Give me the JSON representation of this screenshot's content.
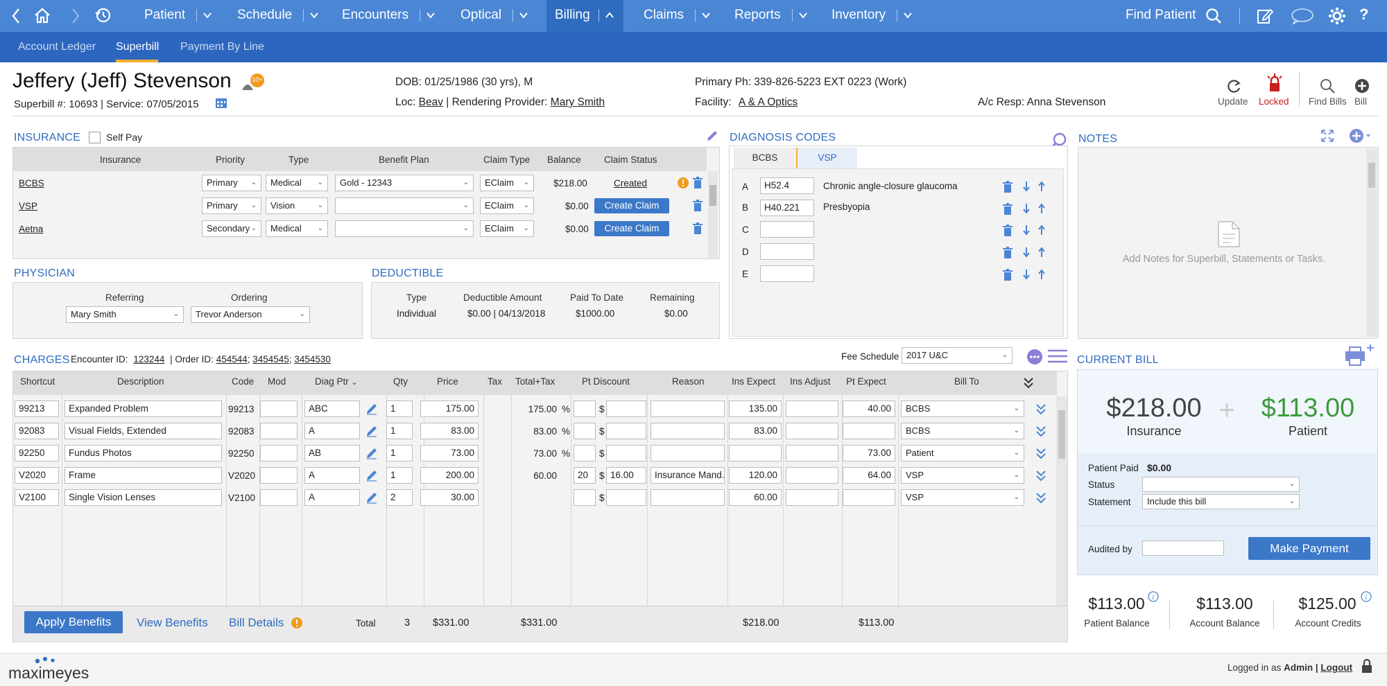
{
  "topnav": {
    "items": [
      {
        "label": "Patient"
      },
      {
        "label": "Schedule"
      },
      {
        "label": "Encounters"
      },
      {
        "label": "Optical"
      },
      {
        "label": "Billing"
      },
      {
        "label": "Claims"
      },
      {
        "label": "Reports"
      },
      {
        "label": "Inventory"
      }
    ],
    "find_patient": "Find Patient",
    "active": "Billing"
  },
  "subnav": {
    "tabs": [
      {
        "label": "Account Ledger"
      },
      {
        "label": "Superbill"
      },
      {
        "label": "Payment By Line"
      }
    ],
    "selected": "Superbill"
  },
  "patient": {
    "name": "Jeffery (Jeff) Stevenson",
    "badge": "10+",
    "superbill_line": "Superbill  #: 10693  |  Service: 07/05/2015",
    "dob": "DOB: 01/25/1986 (30 yrs), M",
    "loc_label": "Loc:",
    "loc": "Beav",
    "rendering_label": "| Rendering Provider:",
    "rendering_provider": "Mary Smith",
    "primary_phone": "Primary Ph: 339-826-5223  EXT 0223 (Work)",
    "facility_label": "Facility:",
    "facility": "A & A Optics",
    "ac_resp": "A/c Resp:  Anna Stevenson"
  },
  "actions": {
    "update": "Update",
    "locked": "Locked",
    "find_bills": "Find Bills",
    "bill": "Bill"
  },
  "insurance": {
    "title": "INSURANCE",
    "self_pay": "Self Pay",
    "headers": [
      "Insurance",
      "Priority",
      "Type",
      "Benefit Plan",
      "Claim Type",
      "Balance",
      "Claim Status"
    ],
    "rows": [
      {
        "insurance": "BCBS",
        "priority": "Primary",
        "type": "Medical",
        "plan": "Gold - 12343",
        "claim_type": "EClaim",
        "balance": "$218.00",
        "status": "Created"
      },
      {
        "insurance": "VSP",
        "priority": "Primary",
        "type": "Vision",
        "plan": "",
        "claim_type": "EClaim",
        "balance": "$0.00",
        "status": "Create Claim"
      },
      {
        "insurance": "Aetna",
        "priority": "Secondary",
        "type": "Medical",
        "plan": "",
        "claim_type": "EClaim",
        "balance": "$0.00",
        "status": "Create Claim"
      }
    ]
  },
  "physician": {
    "title": "PHYSICIAN",
    "referring_label": "Referring",
    "ordering_label": "Ordering",
    "referring": "Mary Smith",
    "ordering": "Trevor Anderson"
  },
  "deductible": {
    "title": "DEDUCTIBLE",
    "headers": [
      "Type",
      "Deductible Amount",
      "Paid To Date",
      "Remaining"
    ],
    "row": [
      "Individual",
      "$0.00 | 04/13/2018",
      "$1000.00",
      "$0.00"
    ]
  },
  "diagnosis": {
    "title": "DIAGNOSIS CODES",
    "tabs": [
      "BCBS",
      "VSP"
    ],
    "rows": [
      {
        "letter": "A",
        "code": "H52.4",
        "desc": "Chronic angle-closure glaucoma"
      },
      {
        "letter": "B",
        "code": "H40.221",
        "desc": "Presbyopia"
      },
      {
        "letter": "C",
        "code": "",
        "desc": ""
      },
      {
        "letter": "D",
        "code": "",
        "desc": ""
      },
      {
        "letter": "E",
        "code": "",
        "desc": ""
      }
    ]
  },
  "notes": {
    "title": "NOTES",
    "placeholder": "Add Notes for Superbill, Statements or Tasks."
  },
  "charges": {
    "title": "CHARGES",
    "encounter_label": "Encounter ID:",
    "encounter_id": "123244",
    "order_label": "|  Order ID:",
    "order_ids": [
      "454544",
      "3454545",
      "3454530"
    ],
    "fee_schedule_label": "Fee Schedule",
    "fee_schedule": "2017 U&C",
    "headers": [
      "Shortcut",
      "Description",
      "Code",
      "Mod",
      "Diag Ptr",
      "Qty",
      "Price",
      "Tax",
      "Total+Tax",
      "Pt Discount",
      "Reason",
      "Ins Expect",
      "Ins Adjust",
      "Pt Expect",
      "Bill To"
    ],
    "rows": [
      {
        "shortcut": "99213",
        "desc": "Expanded Problem",
        "code": "99213",
        "mod": "",
        "diag": "ABC",
        "qty": "1",
        "price": "175.00",
        "total": "175.00",
        "pct": "%",
        "disc_pct": "",
        "disc_amt": "",
        "reason": "",
        "ins_expect": "135.00",
        "ins_adjust": "",
        "pt_expect": "40.00",
        "bill_to": "BCBS"
      },
      {
        "shortcut": "92083",
        "desc": "Visual Fields, Extended",
        "code": "92083",
        "mod": "",
        "diag": "A",
        "qty": "1",
        "price": "83.00",
        "total": "83.00",
        "pct": "%",
        "disc_pct": "",
        "disc_amt": "",
        "reason": "",
        "ins_expect": "83.00",
        "ins_adjust": "",
        "pt_expect": "",
        "bill_to": "BCBS"
      },
      {
        "shortcut": "92250",
        "desc": "Fundus Photos",
        "code": "92250",
        "mod": "",
        "diag": "AB",
        "qty": "1",
        "price": "73.00",
        "total": "73.00",
        "pct": "%",
        "disc_pct": "",
        "disc_amt": "",
        "reason": "",
        "ins_expect": "",
        "ins_adjust": "",
        "pt_expect": "73.00",
        "bill_to": "Patient"
      },
      {
        "shortcut": "V2020",
        "desc": "Frame",
        "code": "V2020",
        "mod": "",
        "diag": "A",
        "qty": "1",
        "price": "200.00",
        "total": "60.00",
        "pct": "",
        "disc_pct": "20",
        "disc_amt": "16.00",
        "reason": "Insurance Mand...",
        "ins_expect": "120.00",
        "ins_adjust": "",
        "pt_expect": "64.00",
        "bill_to": "VSP"
      },
      {
        "shortcut": "V2100",
        "desc": "Single Vision Lenses",
        "code": "V2100",
        "mod": "",
        "diag": "A",
        "qty": "2",
        "price": "30.00",
        "total": "",
        "pct": "",
        "disc_pct": "",
        "disc_amt": "",
        "reason": "",
        "ins_expect": "60.00",
        "ins_adjust": "",
        "pt_expect": "",
        "bill_to": "VSP"
      }
    ],
    "dollar": "$",
    "footer": {
      "apply_benefits": "Apply Benefits",
      "view_benefits": "View Benefits",
      "bill_details": "Bill Details",
      "total_label": "Total",
      "qty_total": "3",
      "price_total": "$331.00",
      "total_tax": "$331.00",
      "ins_expect_total": "$218.00",
      "pt_expect_total": "$113.00"
    }
  },
  "current_bill": {
    "title": "CURRENT BILL",
    "insurance_amount": "$218.00",
    "insurance_label": "Insurance",
    "patient_amount": "$113.00",
    "patient_label": "Patient",
    "plus": "+",
    "patient_paid_label": "Patient Paid",
    "patient_paid": "$0.00",
    "status_label": "Status",
    "status": "",
    "statement_label": "Statement",
    "statement": "Include this bill",
    "audited_label": "Audited by",
    "audited": "",
    "make_payment": "Make Payment",
    "patient_balance": "$113.00",
    "patient_balance_label": "Patient Balance",
    "account_balance": "$113.00",
    "account_balance_label": "Account Balance",
    "account_credits": "$125.00",
    "account_credits_label": "Account Credits"
  },
  "footer": {
    "logo": "maximeyes",
    "logged_prefix": "Logged in as",
    "user": "Admin",
    "logout": "Logout"
  },
  "colors": {
    "nav": "#4a86d4",
    "subnav": "#2d66bf",
    "accent": "#2f6cc0",
    "patient_green": "#3d9a3d",
    "locked_red": "#c8201e"
  }
}
